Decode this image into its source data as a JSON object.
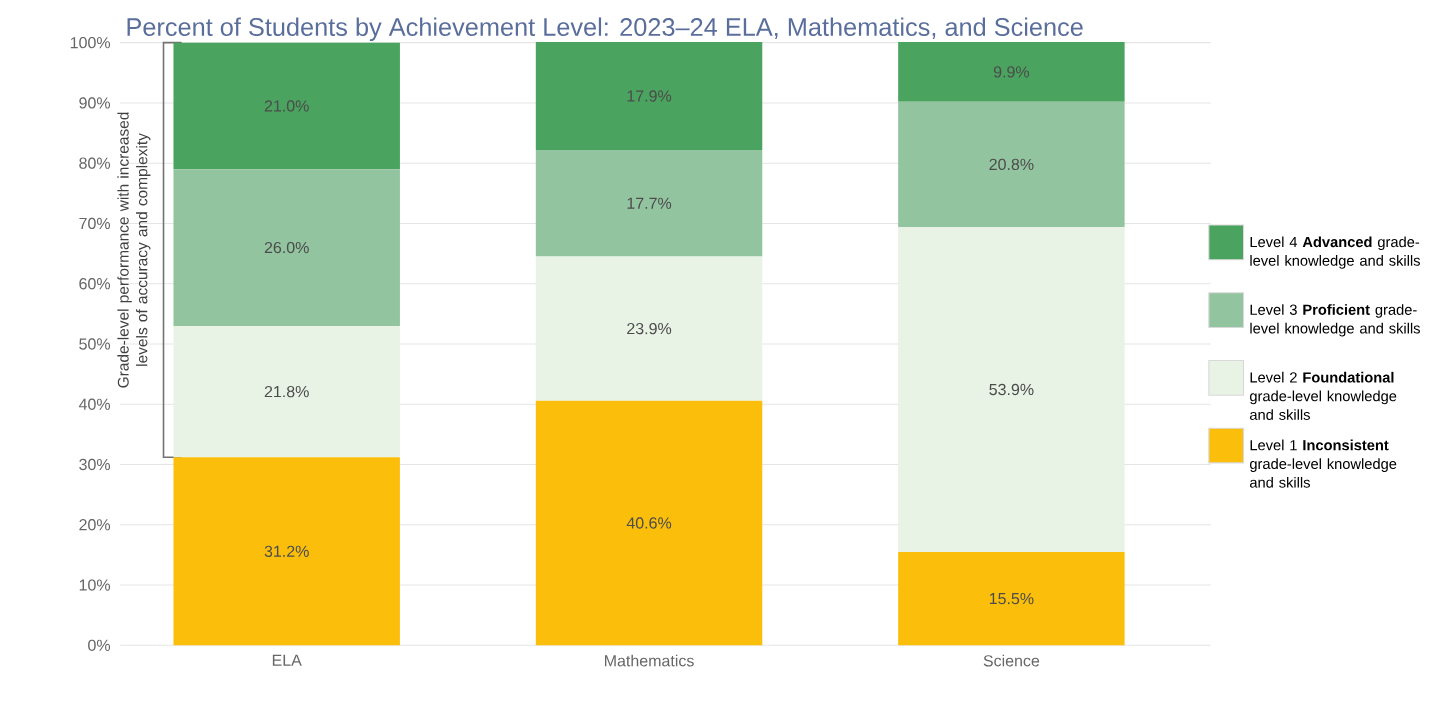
{
  "chart_data": {
    "type": "bar",
    "stacked": true,
    "title": "Percent of Students by Achievement Level: 2023–24 ELA, Mathematics, and Science",
    "categories": [
      "ELA",
      "Mathematics",
      "Science"
    ],
    "series": [
      {
        "name": "Level 1 **Inconsistent** grade-level knowledge and skills",
        "color": "#fbbf0b",
        "values": [
          31.2,
          40.6,
          15.5
        ],
        "value_labels": [
          "31.2%",
          "40.6%",
          "15.5%"
        ]
      },
      {
        "name": "Level 2 **Foundational** grade-level knowledge and skills",
        "color": "#e8f3e6",
        "values": [
          21.8,
          23.9,
          53.9
        ],
        "value_labels": [
          "21.8%",
          "23.9%",
          "53.9%"
        ]
      },
      {
        "name": "Level 3 **Proficient** grade-level knowledge and skills",
        "color": "#93c4a0",
        "values": [
          26.0,
          17.7,
          20.8
        ],
        "value_labels": [
          "26.0%",
          "17.7%",
          "20.8%"
        ]
      },
      {
        "name": "Level 4 **Advanced** grade-level knowledge and skills",
        "color": "#4aa35e",
        "values": [
          21.0,
          17.9,
          9.9
        ],
        "value_labels": [
          "21.0%",
          "17.9%",
          "9.9%"
        ]
      }
    ],
    "ylim": [
      0,
      100
    ],
    "yticks": [
      {
        "value": 0,
        "label": "0%"
      },
      {
        "value": 10,
        "label": "10%"
      },
      {
        "value": 20,
        "label": "20%"
      },
      {
        "value": 30,
        "label": "30%"
      },
      {
        "value": 40,
        "label": "40%"
      },
      {
        "value": 50,
        "label": "50%"
      },
      {
        "value": 60,
        "label": "60%"
      },
      {
        "value": 70,
        "label": "70%"
      },
      {
        "value": 80,
        "label": "80%"
      },
      {
        "value": 90,
        "label": "90%"
      },
      {
        "value": 100,
        "label": "100%"
      }
    ],
    "grid": "y",
    "legend": "right",
    "annotations": [
      "Grade-level performance with increased levels of accuracy and complexity"
    ]
  }
}
